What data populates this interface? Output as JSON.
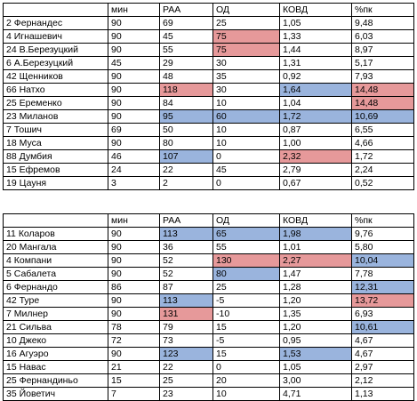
{
  "colors": {
    "red_highlight": "#e6999a",
    "blue_highlight": "#9ab4dd"
  },
  "table1": {
    "headers": [
      "",
      "мин",
      "РАА",
      "ОД",
      "КОВД",
      "%пк"
    ],
    "rows": [
      {
        "cells": [
          "2 Фернандес",
          "90",
          "69",
          "25",
          "1,05",
          "9,48"
        ],
        "hl": [
          "",
          "",
          "",
          "",
          "",
          ""
        ]
      },
      {
        "cells": [
          "4 Игнашевич",
          "90",
          "45",
          "75",
          "1,33",
          "6,03"
        ],
        "hl": [
          "",
          "",
          "",
          "red",
          "",
          ""
        ]
      },
      {
        "cells": [
          "24 В.Березуцкий",
          "90",
          "55",
          "75",
          "1,44",
          "8,97"
        ],
        "hl": [
          "",
          "",
          "",
          "red",
          "",
          ""
        ]
      },
      {
        "cells": [
          "6 А.Березуцкий",
          "45",
          "29",
          "30",
          "1,31",
          "5,17"
        ],
        "hl": [
          "",
          "",
          "",
          "",
          "",
          ""
        ]
      },
      {
        "cells": [
          "42 Щенников",
          "90",
          "48",
          "35",
          "0,92",
          "7,93"
        ],
        "hl": [
          "",
          "",
          "",
          "",
          "",
          ""
        ]
      },
      {
        "cells": [
          "66 Натхо",
          "90",
          "118",
          "30",
          "1,64",
          "14,48"
        ],
        "hl": [
          "",
          "",
          "red",
          "",
          "blue",
          "red"
        ]
      },
      {
        "cells": [
          "25 Еременко",
          "90",
          "84",
          "10",
          "1,04",
          "14,48"
        ],
        "hl": [
          "",
          "",
          "",
          "",
          "",
          "red"
        ]
      },
      {
        "cells": [
          "23 Миланов",
          "90",
          "95",
          "60",
          "1,72",
          "10,69"
        ],
        "hl": [
          "",
          "",
          "blue",
          "blue",
          "blue",
          "blue"
        ]
      },
      {
        "cells": [
          "7 Тошич",
          "69",
          "50",
          "10",
          "0,87",
          "6,55"
        ],
        "hl": [
          "",
          "",
          "",
          "",
          "",
          ""
        ]
      },
      {
        "cells": [
          "18 Муса",
          "90",
          "80",
          "10",
          "1,00",
          "4,66"
        ],
        "hl": [
          "",
          "",
          "",
          "",
          "",
          ""
        ]
      },
      {
        "cells": [
          "88 Думбия",
          "46",
          "107",
          "0",
          "2,32",
          "1,72"
        ],
        "hl": [
          "",
          "",
          "blue",
          "",
          "red",
          ""
        ]
      },
      {
        "cells": [
          "15 Ефремов",
          "24",
          "22",
          "45",
          "2,79",
          "2,24"
        ],
        "hl": [
          "",
          "",
          "",
          "",
          "",
          ""
        ]
      },
      {
        "cells": [
          "19 Цауня",
          "3",
          "2",
          "0",
          "0,67",
          "0,52"
        ],
        "hl": [
          "",
          "",
          "",
          "",
          "",
          ""
        ]
      }
    ]
  },
  "table2": {
    "headers": [
      "",
      "мин",
      "РАА",
      "ОД",
      "КОВД",
      "%пк"
    ],
    "rows": [
      {
        "cells": [
          "11 Коларов",
          "90",
          "113",
          "65",
          "1,98",
          "9,76"
        ],
        "hl": [
          "",
          "",
          "blue",
          "blue",
          "blue",
          ""
        ]
      },
      {
        "cells": [
          "20 Мангала",
          "90",
          "36",
          "55",
          "1,01",
          "5,80"
        ],
        "hl": [
          "",
          "",
          "",
          "",
          "",
          ""
        ]
      },
      {
        "cells": [
          "4 Компани",
          "90",
          "52",
          "130",
          "2,27",
          "10,04"
        ],
        "hl": [
          "",
          "",
          "",
          "red",
          "red",
          "blue"
        ]
      },
      {
        "cells": [
          "5 Сабалета",
          "90",
          "52",
          "80",
          "1,47",
          "7,78"
        ],
        "hl": [
          "",
          "",
          "",
          "blue",
          "",
          ""
        ]
      },
      {
        "cells": [
          "6 Фернандо",
          "86",
          "87",
          "25",
          "1,28",
          "12,31"
        ],
        "hl": [
          "",
          "",
          "",
          "",
          "",
          "blue"
        ]
      },
      {
        "cells": [
          "42 Туре",
          "90",
          "113",
          "-5",
          "1,20",
          "13,72"
        ],
        "hl": [
          "",
          "",
          "blue",
          "",
          "",
          "red"
        ]
      },
      {
        "cells": [
          "7 Милнер",
          "90",
          "131",
          "-10",
          "1,35",
          "6,93"
        ],
        "hl": [
          "",
          "",
          "red",
          "",
          "",
          ""
        ]
      },
      {
        "cells": [
          "21 Сильва",
          "78",
          "79",
          "15",
          "1,20",
          "10,61"
        ],
        "hl": [
          "",
          "",
          "",
          "",
          "",
          "blue"
        ]
      },
      {
        "cells": [
          "10 Джеко",
          "72",
          "73",
          "-5",
          "0,95",
          "4,67"
        ],
        "hl": [
          "",
          "",
          "",
          "",
          "",
          ""
        ]
      },
      {
        "cells": [
          "16 Агуэро",
          "90",
          "123",
          "15",
          "1,53",
          "4,67"
        ],
        "hl": [
          "",
          "",
          "blue",
          "",
          "blue",
          ""
        ]
      },
      {
        "cells": [
          "15 Навас",
          "21",
          "22",
          "0",
          "1,05",
          "2,97"
        ],
        "hl": [
          "",
          "",
          "",
          "",
          "",
          ""
        ]
      },
      {
        "cells": [
          "25 Фернандиньо",
          "15",
          "25",
          "20",
          "3,00",
          "2,12"
        ],
        "hl": [
          "",
          "",
          "",
          "",
          "",
          ""
        ]
      },
      {
        "cells": [
          "35 Йоветич",
          "7",
          "23",
          "10",
          "4,71",
          "1,13"
        ],
        "hl": [
          "",
          "",
          "",
          "",
          "",
          ""
        ]
      }
    ]
  }
}
